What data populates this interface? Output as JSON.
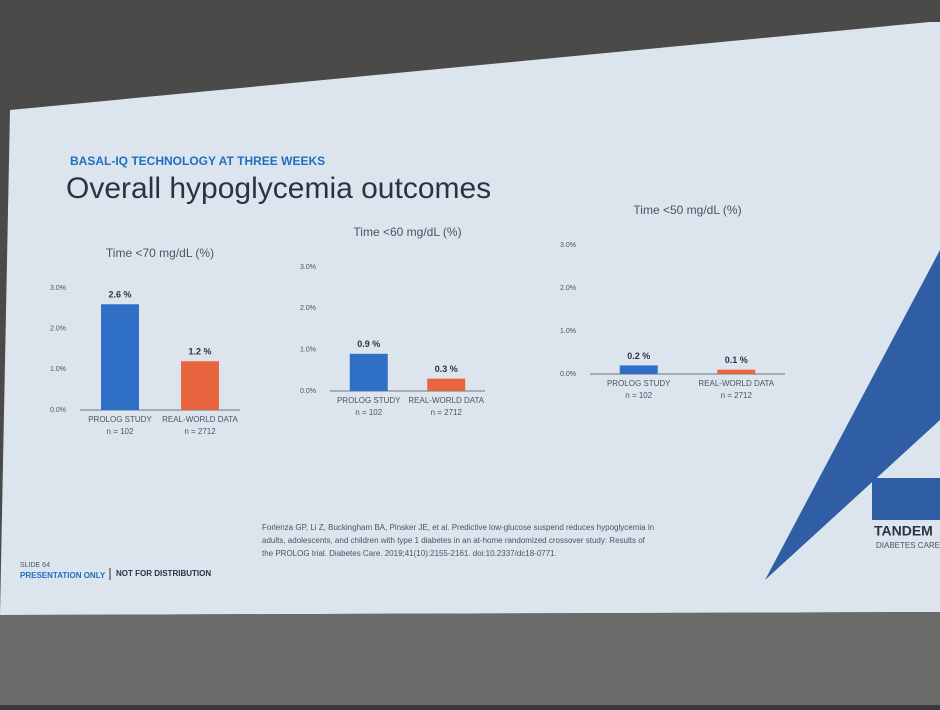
{
  "slide": {
    "kicker": "BASAL-IQ TECHNOLOGY AT THREE WEEKS",
    "title": "Overall hypoglycemia outcomes",
    "slide_number": "SLIDE 64",
    "footer_left": "PRESENTATION ONLY",
    "footer_right": "NOT FOR DISTRIBUTION",
    "citation": [
      "Forlenza GP, Li Z, Buckingham BA, Pinsker JE, et al. Predictive low-glucose suspend reduces hypoglycemia in",
      "adults, adolescents, and children with type 1 diabetes in an at-home randomized crossover study: Results of",
      "the PROLOG trial. Diabetes Care. 2019;41(10):2155-2161. doi:10.2337/dc18-0771."
    ],
    "logo_name": "TANDEM",
    "logo_sub": "DIABETES CARE"
  },
  "chart_data": [
    {
      "type": "bar",
      "title": "Time <70 mg/dL (%)",
      "categories": [
        "PROLOG STUDY",
        "REAL-WORLD DATA"
      ],
      "sample_sizes": [
        "n = 102",
        "n = 2712"
      ],
      "values": [
        2.6,
        1.2
      ],
      "value_labels": [
        "2.6 %",
        "1.2 %"
      ],
      "colors": [
        "#2f6fc6",
        "#e8653f"
      ],
      "ylim": [
        0,
        3
      ],
      "yticks": [
        {
          "value": 0,
          "label": "0.0%"
        },
        {
          "value": 1,
          "label": "1.0%"
        },
        {
          "value": 2,
          "label": "2.0%"
        },
        {
          "value": 3,
          "label": "3.0%"
        }
      ]
    },
    {
      "type": "bar",
      "title": "Time <60 mg/dL (%)",
      "categories": [
        "PROLOG STUDY",
        "REAL-WORLD DATA"
      ],
      "sample_sizes": [
        "n = 102",
        "n = 2712"
      ],
      "values": [
        0.9,
        0.3
      ],
      "value_labels": [
        "0.9 %",
        "0.3 %"
      ],
      "colors": [
        "#2f6fc6",
        "#e8653f"
      ],
      "ylim": [
        0,
        3
      ],
      "yticks": [
        {
          "value": 0,
          "label": "0.0%"
        },
        {
          "value": 1,
          "label": "1.0%"
        },
        {
          "value": 2,
          "label": "2.0%"
        },
        {
          "value": 3,
          "label": "3.0%"
        }
      ]
    },
    {
      "type": "bar",
      "title": "Time <50 mg/dL (%)",
      "categories": [
        "PROLOG STUDY",
        "REAL-WORLD DATA"
      ],
      "sample_sizes": [
        "n = 102",
        "n = 2712"
      ],
      "values": [
        0.2,
        0.1
      ],
      "value_labels": [
        "0.2 %",
        "0.1 %"
      ],
      "colors": [
        "#2f6fc6",
        "#e8653f"
      ],
      "ylim": [
        0,
        3
      ],
      "yticks": [
        {
          "value": 0,
          "label": "0.0%"
        },
        {
          "value": 1,
          "label": "1.0%"
        },
        {
          "value": 2,
          "label": "2.0%"
        },
        {
          "value": 3,
          "label": "3.0%"
        }
      ]
    }
  ]
}
